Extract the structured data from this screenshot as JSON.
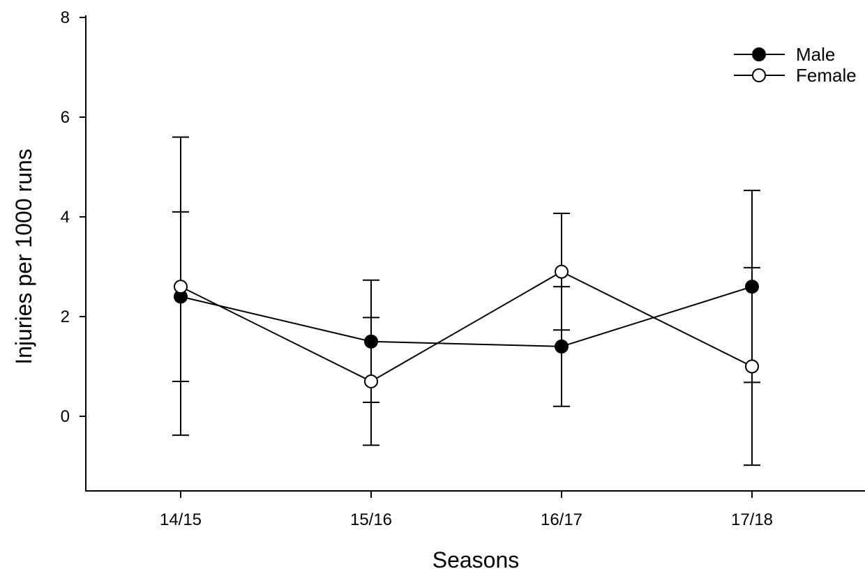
{
  "chart_data": {
    "type": "line",
    "xlabel": "Seasons",
    "ylabel": "Injuries per 1000 runs",
    "categories": [
      "14/15",
      "15/16",
      "16/17",
      "17/18"
    ],
    "ylim": [
      -1.5,
      8
    ],
    "yticks": [
      0,
      2,
      4,
      6,
      8
    ],
    "grid": false,
    "legend_position": "top-right",
    "series": [
      {
        "name": "Male",
        "marker": "filled-circle",
        "color": "#000000",
        "values": [
          2.4,
          1.5,
          1.4,
          2.6
        ],
        "error_low": [
          0.7,
          0.28,
          0.2,
          0.68
        ],
        "error_high": [
          4.1,
          2.73,
          2.6,
          4.53
        ]
      },
      {
        "name": "Female",
        "marker": "open-circle",
        "color": "#000000",
        "values": [
          2.6,
          0.7,
          2.9,
          1.0
        ],
        "error_low": [
          -0.38,
          -0.58,
          1.73,
          -0.98
        ],
        "error_high": [
          5.6,
          1.98,
          4.07,
          2.98
        ]
      }
    ]
  }
}
